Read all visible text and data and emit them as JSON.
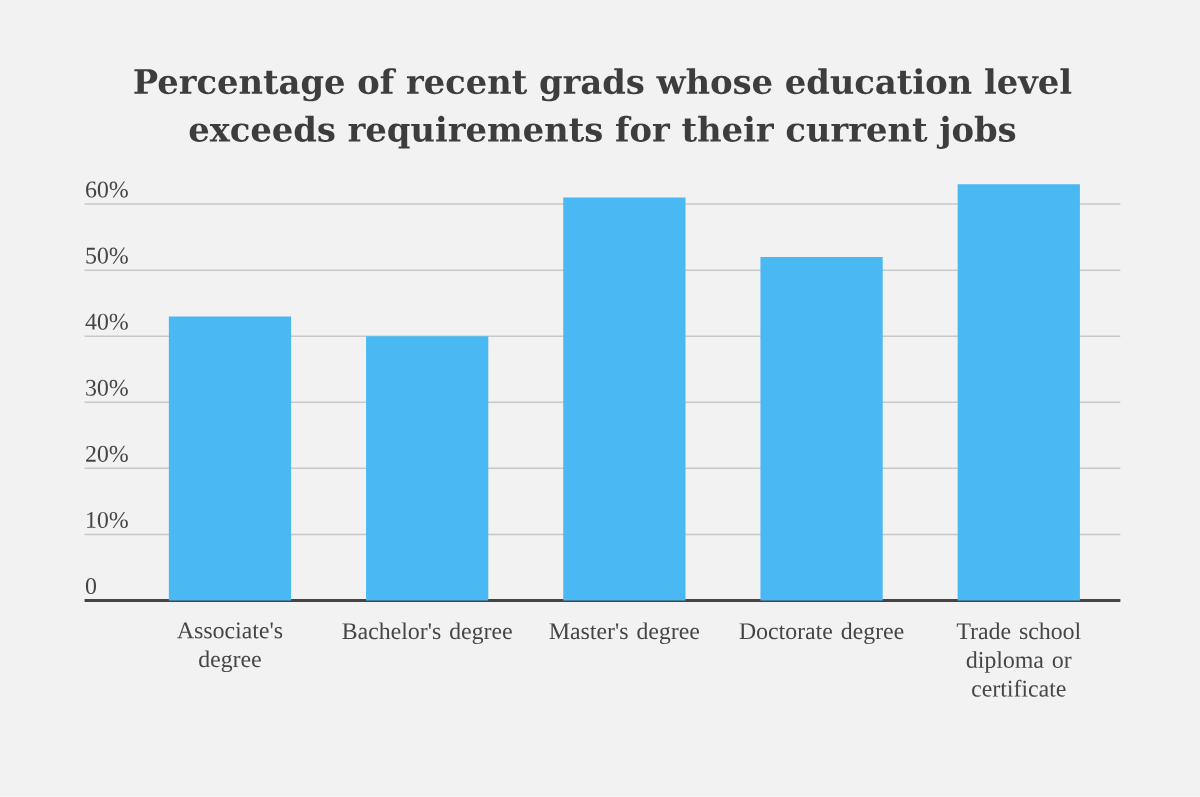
{
  "chart_data": {
    "type": "bar",
    "title": "Percentage of recent grads whose education level exceeds requirements for their current jobs",
    "categories": [
      "Associate's degree",
      "Bachelor's degree",
      "Master's degree",
      "Doctorate degree",
      "Trade school diploma or certificate"
    ],
    "values": [
      43,
      40,
      61,
      52,
      63
    ],
    "color": "#4ab8f3",
    "ylim": [
      0,
      63
    ],
    "yticks": [
      0,
      {
        "value": 10,
        "label": "10%"
      },
      {
        "value": 20,
        "label": "20%"
      },
      {
        "value": 30,
        "label": "30%"
      },
      {
        "value": 40,
        "label": "40%"
      },
      {
        "value": 50,
        "label": "50%"
      },
      {
        "value": 60,
        "label": "60%"
      }
    ],
    "grid": "y"
  }
}
